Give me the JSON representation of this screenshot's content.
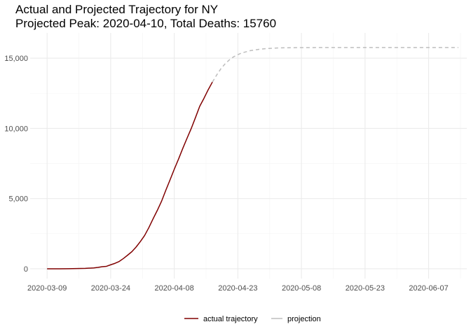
{
  "chart_data": {
    "type": "line",
    "title": "Actual and Projected Trajectory for NY",
    "subtitle": "Projected Peak: 2020-04-10, Total Deaths: 15760",
    "xlabel": "",
    "ylabel": "",
    "x_axis_type": "date",
    "xlim": [
      "2020-03-05",
      "2020-06-16"
    ],
    "ylim": [
      -700,
      16800
    ],
    "x_ticks": [
      "2020-03-09",
      "2020-03-24",
      "2020-04-08",
      "2020-04-23",
      "2020-05-08",
      "2020-05-23",
      "2020-06-07"
    ],
    "y_ticks": [
      0,
      5000,
      10000,
      15000
    ],
    "y_tick_labels": [
      "0",
      "5,000",
      "10,000",
      "15,000"
    ],
    "grid": true,
    "legend_position": "bottom",
    "series": [
      {
        "name": "actual trajectory",
        "color": "#800000",
        "line_style": "solid",
        "points": [
          [
            "2020-03-09",
            0
          ],
          [
            "2020-03-12",
            1
          ],
          [
            "2020-03-14",
            6
          ],
          [
            "2020-03-16",
            17
          ],
          [
            "2020-03-18",
            30
          ],
          [
            "2020-03-20",
            60
          ],
          [
            "2020-03-21",
            100
          ],
          [
            "2020-03-22",
            150
          ],
          [
            "2020-03-23",
            175
          ],
          [
            "2020-03-24",
            285
          ],
          [
            "2020-03-25",
            385
          ],
          [
            "2020-03-26",
            520
          ],
          [
            "2020-03-27",
            730
          ],
          [
            "2020-03-28",
            970
          ],
          [
            "2020-03-29",
            1220
          ],
          [
            "2020-03-30",
            1550
          ],
          [
            "2020-03-31",
            1940
          ],
          [
            "2020-04-01",
            2370
          ],
          [
            "2020-04-02",
            2930
          ],
          [
            "2020-04-03",
            3560
          ],
          [
            "2020-04-04",
            4160
          ],
          [
            "2020-04-05",
            4810
          ],
          [
            "2020-04-06",
            5590
          ],
          [
            "2020-04-07",
            6330
          ],
          [
            "2020-04-08",
            7090
          ],
          [
            "2020-04-09",
            7810
          ],
          [
            "2020-04-10",
            8570
          ],
          [
            "2020-04-11",
            9290
          ],
          [
            "2020-04-12",
            9990
          ],
          [
            "2020-04-13",
            10770
          ],
          [
            "2020-04-14",
            11570
          ],
          [
            "2020-04-15",
            12140
          ],
          [
            "2020-04-16",
            12750
          ],
          [
            "2020-04-17",
            13300
          ]
        ]
      },
      {
        "name": "projection",
        "color": "#bdbdbd",
        "line_style": "dashed",
        "points": [
          [
            "2020-04-17",
            13300
          ],
          [
            "2020-04-18",
            13800
          ],
          [
            "2020-04-19",
            14250
          ],
          [
            "2020-04-20",
            14600
          ],
          [
            "2020-04-21",
            14880
          ],
          [
            "2020-04-22",
            15100
          ],
          [
            "2020-04-23",
            15250
          ],
          [
            "2020-04-24",
            15380
          ],
          [
            "2020-04-26",
            15540
          ],
          [
            "2020-04-28",
            15630
          ],
          [
            "2020-04-30",
            15690
          ],
          [
            "2020-05-03",
            15735
          ],
          [
            "2020-05-08",
            15755
          ],
          [
            "2020-05-20",
            15760
          ],
          [
            "2020-06-01",
            15760
          ],
          [
            "2020-06-14",
            15760
          ]
        ]
      }
    ],
    "legend": {
      "entries": [
        "actual trajectory",
        "projection"
      ]
    }
  }
}
